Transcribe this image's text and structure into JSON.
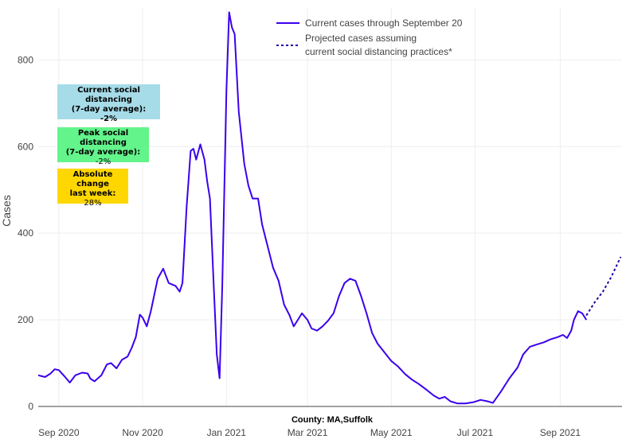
{
  "chart_data": {
    "type": "line",
    "ylabel": "Cases",
    "xlabel": "County: MA,Suffolk",
    "ylim": [
      0,
      920
    ],
    "y_ticks": [
      0,
      200,
      400,
      600,
      800
    ],
    "x_ticks": [
      {
        "label": "Sep 2020",
        "date": "2020-09-01"
      },
      {
        "label": "Nov 2020",
        "date": "2020-11-01"
      },
      {
        "label": "Jan 2021",
        "date": "2021-01-01"
      },
      {
        "label": "Mar 2021",
        "date": "2021-03-01"
      },
      {
        "label": "May 2021",
        "date": "2021-05-01"
      },
      {
        "label": "Jul 2021",
        "date": "2021-07-01"
      },
      {
        "label": "Sep 2021",
        "date": "2021-09-01"
      }
    ],
    "xlim": [
      "2020-08-17",
      "2021-10-16"
    ],
    "series": [
      {
        "name": "Current cases through September 20",
        "style": "solid",
        "color": "#3b00ed",
        "points": [
          [
            "2020-08-17",
            72
          ],
          [
            "2020-08-22",
            68
          ],
          [
            "2020-08-26",
            76
          ],
          [
            "2020-08-29",
            86
          ],
          [
            "2020-09-01",
            84
          ],
          [
            "2020-09-05",
            70
          ],
          [
            "2020-09-09",
            55
          ],
          [
            "2020-09-13",
            72
          ],
          [
            "2020-09-18",
            78
          ],
          [
            "2020-09-22",
            76
          ],
          [
            "2020-09-24",
            64
          ],
          [
            "2020-09-27",
            58
          ],
          [
            "2020-10-02",
            72
          ],
          [
            "2020-10-06",
            97
          ],
          [
            "2020-10-09",
            100
          ],
          [
            "2020-10-13",
            88
          ],
          [
            "2020-10-17",
            108
          ],
          [
            "2020-10-21",
            115
          ],
          [
            "2020-10-24",
            135
          ],
          [
            "2020-10-27",
            160
          ],
          [
            "2020-10-30",
            212
          ],
          [
            "2020-11-01",
            205
          ],
          [
            "2020-11-04",
            185
          ],
          [
            "2020-11-07",
            220
          ],
          [
            "2020-11-12",
            295
          ],
          [
            "2020-11-16",
            318
          ],
          [
            "2020-11-20",
            285
          ],
          [
            "2020-11-25",
            278
          ],
          [
            "2020-11-28",
            265
          ],
          [
            "2020-11-30",
            285
          ],
          [
            "2020-12-03",
            460
          ],
          [
            "2020-12-06",
            590
          ],
          [
            "2020-12-08",
            595
          ],
          [
            "2020-12-10",
            570
          ],
          [
            "2020-12-13",
            605
          ],
          [
            "2020-12-16",
            570
          ],
          [
            "2020-12-18",
            520
          ],
          [
            "2020-12-20",
            480
          ],
          [
            "2020-12-23",
            260
          ],
          [
            "2020-12-25",
            120
          ],
          [
            "2020-12-27",
            65
          ],
          [
            "2020-12-29",
            280
          ],
          [
            "2021-01-01",
            730
          ],
          [
            "2021-01-03",
            910
          ],
          [
            "2021-01-05",
            875
          ],
          [
            "2021-01-07",
            860
          ],
          [
            "2021-01-10",
            680
          ],
          [
            "2021-01-14",
            560
          ],
          [
            "2021-01-17",
            510
          ],
          [
            "2021-01-20",
            480
          ],
          [
            "2021-01-24",
            480
          ],
          [
            "2021-01-27",
            420
          ],
          [
            "2021-01-31",
            370
          ],
          [
            "2021-02-04",
            320
          ],
          [
            "2021-02-08",
            290
          ],
          [
            "2021-02-12",
            235
          ],
          [
            "2021-02-16",
            210
          ],
          [
            "2021-02-19",
            185
          ],
          [
            "2021-02-22",
            200
          ],
          [
            "2021-02-25",
            215
          ],
          [
            "2021-03-01",
            200
          ],
          [
            "2021-03-04",
            180
          ],
          [
            "2021-03-08",
            175
          ],
          [
            "2021-03-12",
            185
          ],
          [
            "2021-03-16",
            198
          ],
          [
            "2021-03-20",
            215
          ],
          [
            "2021-03-24",
            255
          ],
          [
            "2021-03-28",
            285
          ],
          [
            "2021-04-01",
            295
          ],
          [
            "2021-04-05",
            290
          ],
          [
            "2021-04-09",
            255
          ],
          [
            "2021-04-13",
            215
          ],
          [
            "2021-04-17",
            170
          ],
          [
            "2021-04-21",
            145
          ],
          [
            "2021-04-26",
            125
          ],
          [
            "2021-05-01",
            105
          ],
          [
            "2021-05-06",
            92
          ],
          [
            "2021-05-11",
            75
          ],
          [
            "2021-05-16",
            62
          ],
          [
            "2021-05-21",
            52
          ],
          [
            "2021-05-26",
            40
          ],
          [
            "2021-06-01",
            25
          ],
          [
            "2021-06-05",
            18
          ],
          [
            "2021-06-09",
            22
          ],
          [
            "2021-06-13",
            12
          ],
          [
            "2021-06-18",
            7
          ],
          [
            "2021-06-24",
            7
          ],
          [
            "2021-06-30",
            10
          ],
          [
            "2021-07-05",
            15
          ],
          [
            "2021-07-10",
            12
          ],
          [
            "2021-07-14",
            8
          ],
          [
            "2021-07-20",
            35
          ],
          [
            "2021-07-26",
            65
          ],
          [
            "2021-08-01",
            90
          ],
          [
            "2021-08-05",
            120
          ],
          [
            "2021-08-10",
            138
          ],
          [
            "2021-08-15",
            143
          ],
          [
            "2021-08-20",
            148
          ],
          [
            "2021-08-25",
            155
          ],
          [
            "2021-08-30",
            160
          ],
          [
            "2021-09-03",
            165
          ],
          [
            "2021-09-06",
            158
          ],
          [
            "2021-09-09",
            175
          ],
          [
            "2021-09-11",
            200
          ],
          [
            "2021-09-14",
            220
          ],
          [
            "2021-09-17",
            215
          ],
          [
            "2021-09-20",
            200
          ]
        ]
      },
      {
        "name": "Projected cases assuming current social distancing practices*",
        "style": "dotted",
        "color": "#1f00a0",
        "points": [
          [
            "2021-09-20",
            210
          ],
          [
            "2021-09-26",
            240
          ],
          [
            "2021-10-02",
            265
          ],
          [
            "2021-10-08",
            298
          ],
          [
            "2021-10-15",
            345
          ]
        ]
      }
    ],
    "legend": {
      "position": "top-center",
      "entries": [
        "Current cases through September 20",
        [
          "Projected cases assuming",
          "current social distancing practices*"
        ]
      ]
    }
  },
  "annotations": [
    {
      "title_lines": [
        "Current social distancing",
        "(7-day average):"
      ],
      "value": "-2%",
      "color": "#a6dbe8"
    },
    {
      "title_lines": [
        "Peak social distancing",
        "(7-day average):"
      ],
      "value": "-2%",
      "color": "#63f48b"
    },
    {
      "title_lines": [
        "Absolute change",
        "last week:"
      ],
      "value": "28%",
      "color": "#ffd700"
    }
  ]
}
